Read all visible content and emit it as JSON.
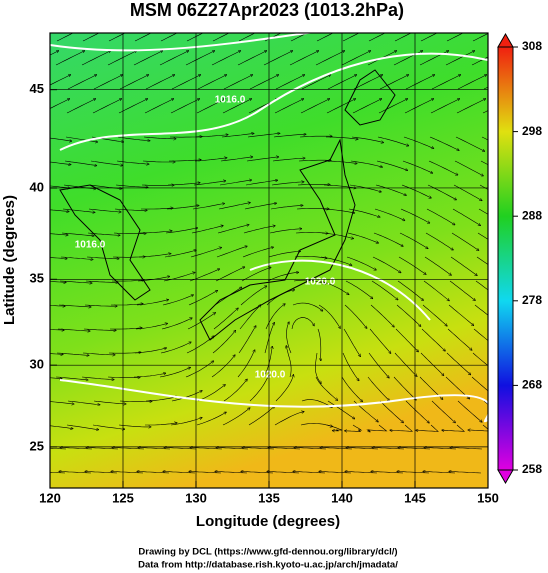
{
  "title": "MSM 06Z27Apr2023 (1013.2hPa)",
  "x_axis": {
    "label": "Longitude (degrees)",
    "lim": [
      120,
      150
    ],
    "ticks": [
      120,
      125,
      130,
      135,
      140,
      145,
      150
    ]
  },
  "y_axis": {
    "label": "Latitude  (degrees)",
    "lim": [
      22.4,
      47.7
    ],
    "ticks": [
      25,
      30,
      35,
      40,
      45
    ],
    "projection": "mercator"
  },
  "colorbar": {
    "lim": [
      258,
      308
    ],
    "ticks": [
      258,
      268,
      278,
      288,
      298,
      308
    ]
  },
  "contour_labels": [
    "1016.0",
    "1020.0",
    "1016.0",
    "1020.0"
  ],
  "credits": [
    "Drawing by DCL (https://www.gfd-dennou.org/library/dcl/)",
    "Data from http://database.rish.kyoto-u.ac.jp/arch/jmadata/"
  ]
}
